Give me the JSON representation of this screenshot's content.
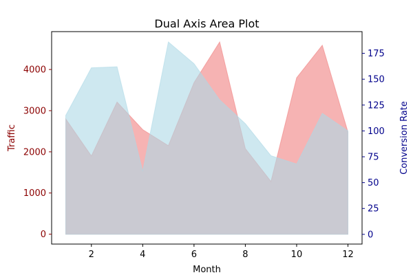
{
  "chart_data": {
    "type": "area",
    "title": "Dual Axis Area Plot",
    "xlabel": "Month",
    "ylabel_left": "Traffic",
    "ylabel_right": "Conversion Rate",
    "x": [
      1,
      2,
      3,
      4,
      5,
      6,
      7,
      8,
      9,
      10,
      11,
      12
    ],
    "xlim": [
      0.45,
      12.55
    ],
    "xticks": [
      2,
      4,
      6,
      8,
      10,
      12
    ],
    "ylim_left": [
      -240,
      4920
    ],
    "yticks_left": [
      0,
      1000,
      2000,
      3000,
      4000
    ],
    "ylim_right": [
      -9.4,
      196
    ],
    "yticks_right": [
      0,
      25,
      50,
      75,
      100,
      125,
      150,
      175
    ],
    "series": [
      {
        "name": "Traffic",
        "axis": "left",
        "values": [
          2800,
          1900,
          3210,
          2540,
          2150,
          3680,
          4670,
          2080,
          1280,
          3800,
          4590,
          2480
        ],
        "color": "#f08080",
        "alpha": 0.6
      },
      {
        "name": "Conversion Rate",
        "axis": "right",
        "values": [
          115,
          161,
          162,
          61,
          186,
          165,
          130,
          107,
          76,
          68,
          117,
          100
        ],
        "color": "#add8e6",
        "alpha": 0.6
      }
    ],
    "left_axis_color": "#8b0000",
    "right_axis_color": "#00008b",
    "legend": "none",
    "grid": false
  }
}
